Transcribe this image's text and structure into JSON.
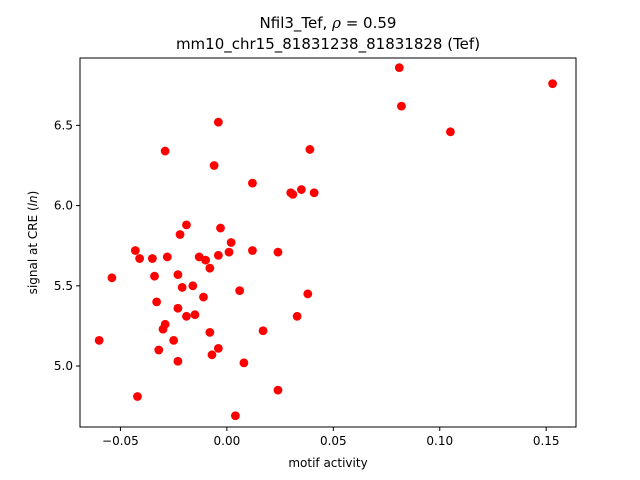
{
  "chart_data": {
    "type": "scatter",
    "title": "Nfil3_Tef, ρ = 0.59",
    "title_rho_prefix": "Nfil3_Tef, ",
    "title_rho_symbol": "ρ",
    "title_rho_value": " = 0.59",
    "subtitle": "mm10_chr15_81831238_81831828 (Tef)",
    "xlabel": "motif activity",
    "ylabel_prefix": "signal at CRE (",
    "ylabel_italic": "ln",
    "ylabel_suffix": ")",
    "xlim": [
      -0.069,
      0.164
    ],
    "ylim": [
      4.62,
      6.92
    ],
    "xticks": [
      -0.05,
      0.0,
      0.05,
      0.1,
      0.15
    ],
    "xtick_labels": [
      "−0.05",
      "0.00",
      "0.05",
      "0.10",
      "0.15"
    ],
    "yticks": [
      5.0,
      5.5,
      6.0,
      6.5
    ],
    "ytick_labels": [
      "5.0",
      "5.5",
      "6.0",
      "6.5"
    ],
    "grid": false,
    "marker_color": "#ff0000",
    "series": [
      {
        "x": [
          0.081,
          0.082,
          0.153,
          0.105,
          -0.004,
          0.039,
          -0.029,
          -0.006,
          0.012,
          0.03,
          0.035,
          0.041,
          0.031,
          -0.019,
          -0.003,
          -0.022,
          0.002,
          -0.043,
          -0.041,
          -0.035,
          -0.028,
          0.001,
          0.012,
          0.024,
          -0.013,
          -0.01,
          -0.004,
          -0.023,
          -0.008,
          -0.054,
          -0.034,
          -0.016,
          -0.021,
          0.006,
          0.038,
          -0.011,
          -0.033,
          -0.023,
          0.033,
          -0.015,
          -0.019,
          -0.029,
          -0.03,
          0.017,
          -0.008,
          -0.025,
          -0.06,
          -0.032,
          -0.004,
          -0.007,
          -0.023,
          0.008,
          0.024,
          -0.042,
          0.004
        ],
        "y": [
          6.86,
          6.62,
          6.76,
          6.46,
          6.52,
          6.35,
          6.34,
          6.25,
          6.14,
          6.08,
          6.1,
          6.08,
          6.07,
          5.88,
          5.86,
          5.82,
          5.77,
          5.72,
          5.67,
          5.67,
          5.68,
          5.71,
          5.72,
          5.71,
          5.68,
          5.66,
          5.69,
          5.57,
          5.61,
          5.55,
          5.56,
          5.5,
          5.49,
          5.47,
          5.45,
          5.43,
          5.4,
          5.36,
          5.31,
          5.32,
          5.31,
          5.26,
          5.23,
          5.22,
          5.21,
          5.16,
          5.16,
          5.1,
          5.11,
          5.07,
          5.03,
          5.02,
          4.85,
          4.81,
          4.69
        ]
      }
    ]
  }
}
